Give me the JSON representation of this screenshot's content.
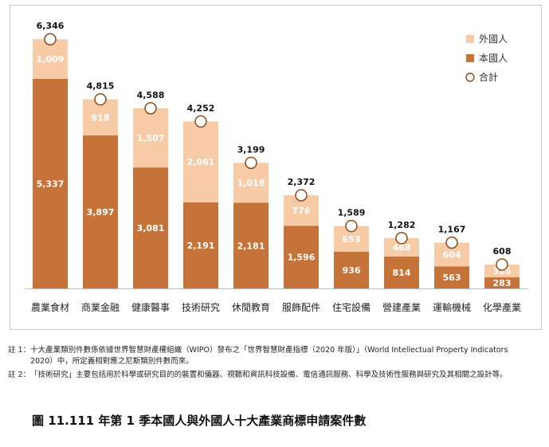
{
  "chart_data": {
    "type": "bar",
    "stacked": true,
    "categories": [
      "農業食材",
      "商業金融",
      "健康醫事",
      "技術研究",
      "休閒教育",
      "服飾配件",
      "住宅設備",
      "營建產業",
      "運輸機械",
      "化學產業"
    ],
    "series": [
      {
        "name": "本國人",
        "values": [
          5337,
          3897,
          3081,
          2191,
          2181,
          1596,
          936,
          814,
          563,
          283
        ],
        "color": "#c6733a"
      },
      {
        "name": "外國人",
        "values": [
          1009,
          918,
          1507,
          2061,
          1018,
          776,
          653,
          468,
          604,
          325
        ],
        "color": "#f8cba7"
      }
    ],
    "totals": {
      "name": "合計",
      "values": [
        6346,
        4815,
        4588,
        4252,
        3199,
        2372,
        1589,
        1282,
        1167,
        608
      ]
    },
    "ylim": [
      0,
      7000
    ],
    "legend": [
      "外國人",
      "本國人",
      "合計"
    ],
    "legend_position": "top-right",
    "title": "",
    "xlabel": "",
    "ylabel": ""
  },
  "notes": [
    {
      "label": "註 1：",
      "text": "十大產業類別件數係依據世界智慧財產權組織（WIPO）發布之「世界智慧財產指標（2020 年版）」（World Intellectual Property Indicators 2020）中，所定義相對應之尼斯類別件數而來。"
    },
    {
      "label": "註 2：",
      "text": "「技術研究」主要包括用於科學或研究目的的裝置和儀器、視聽和資訊科技設備、電信通訊服務、科學及技術性服務與研究及其相關之設計等。"
    }
  ],
  "caption": "圖 11.111 年第 1 季本國人與外國人十大產業商標申請案件數"
}
